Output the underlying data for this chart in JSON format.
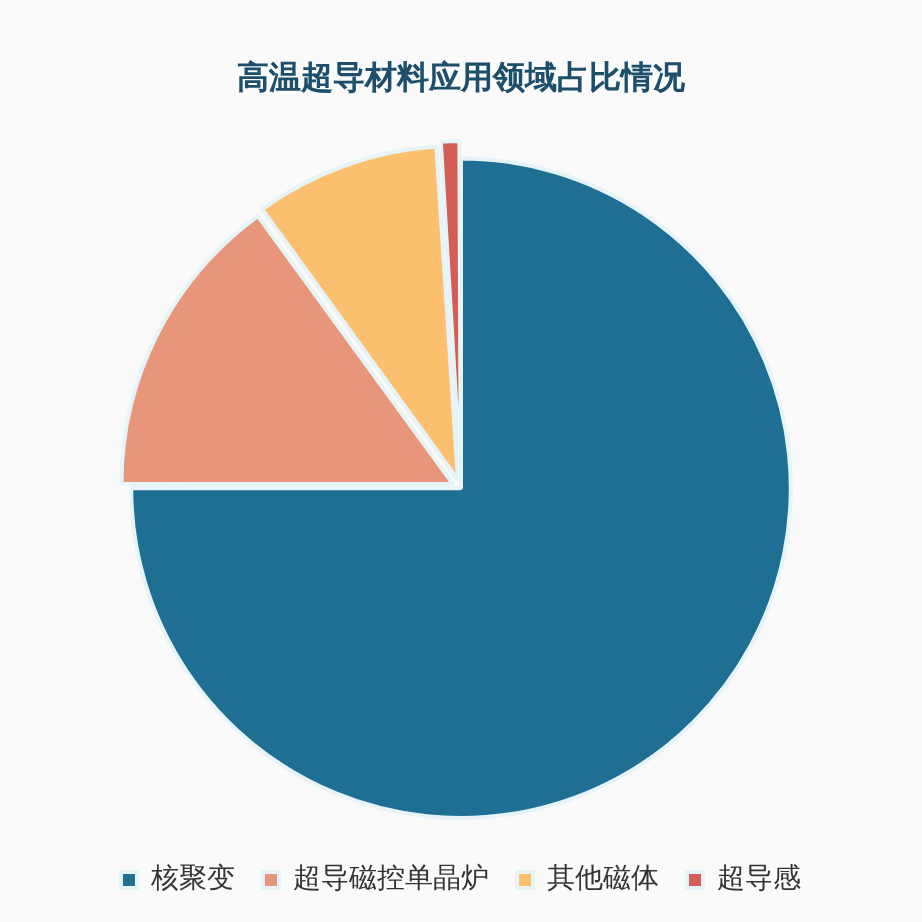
{
  "chart_data": {
    "type": "pie",
    "title": "高温超导材料应用领域占比情况",
    "categories": [
      "核聚变",
      "超导磁控单晶炉",
      "其他磁体",
      "超导感"
    ],
    "values": [
      75,
      15,
      9,
      1
    ],
    "colors": [
      "#1f6f94",
      "#e8967a",
      "#fbbf6e",
      "#d45d55"
    ],
    "legend": "bottom"
  }
}
